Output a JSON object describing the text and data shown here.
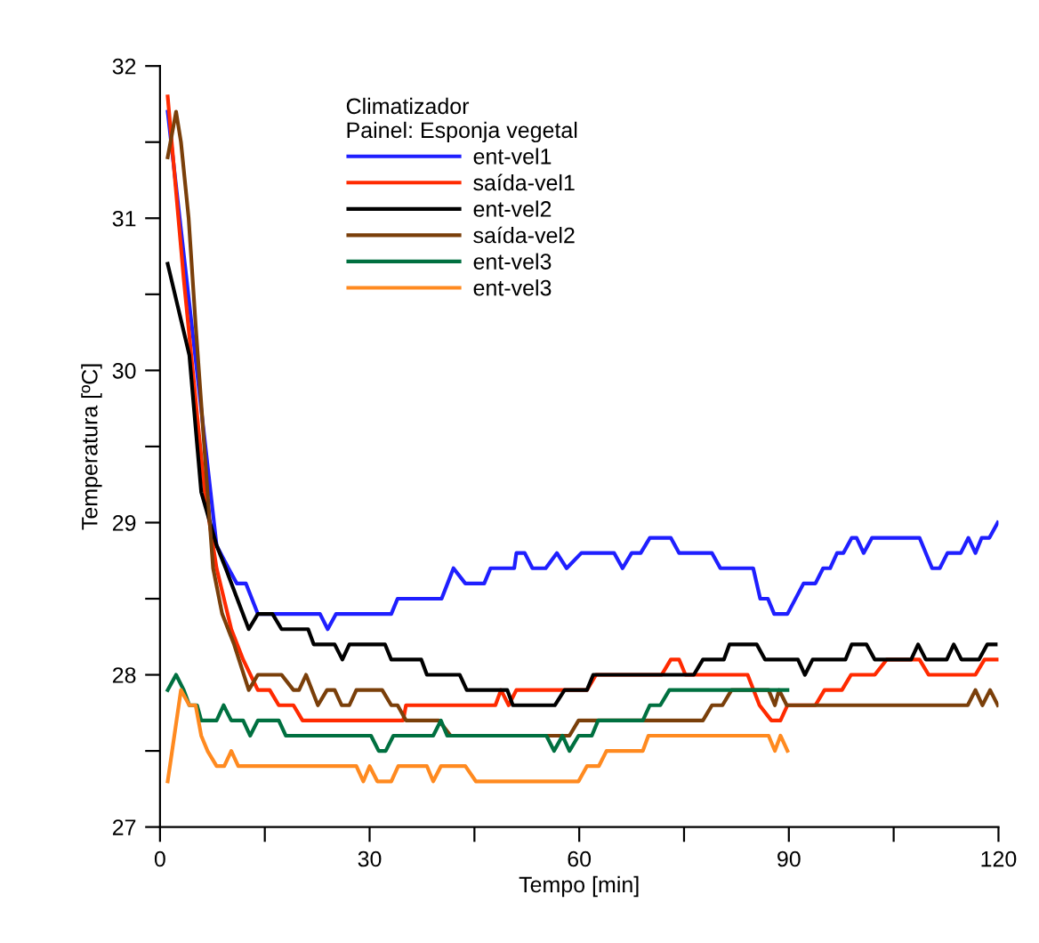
{
  "chart_data": {
    "type": "line",
    "xlabel": "Tempo [min]",
    "ylabel": "Temperatura [ºC]",
    "legend_title": "Climatizador\nPainel: Esponja vegetal",
    "legend": "top",
    "grid": false,
    "marker": "none",
    "line_style": "solid",
    "xlim": [
      0,
      120
    ],
    "ylim": [
      27,
      32
    ],
    "xticks": [
      0,
      {
        "value": 15,
        "label": null
      },
      30,
      {
        "value": 45,
        "label": null
      },
      60,
      {
        "value": 75,
        "label": null
      },
      90,
      {
        "value": 105,
        "label": null
      },
      120
    ],
    "yticks": [
      27,
      {
        "value": 27.5,
        "label": null
      },
      28,
      {
        "value": 28.5,
        "label": null
      },
      29,
      {
        "value": 29.5,
        "label": null
      },
      30,
      {
        "value": 30.5,
        "label": null
      },
      31,
      {
        "value": 31.5,
        "label": null
      },
      32
    ],
    "series": [
      {
        "name": "ent-vel1",
        "color": "#1f1fff",
        "x": [
          1.1,
          8.1,
          9.8,
          11,
          12.3,
          14,
          22.9,
          24,
          25.2,
          33.1,
          34,
          40.3,
          42,
          43.7,
          46.4,
          47.3,
          50.7,
          51,
          52.2,
          53.3,
          55.2,
          56.8,
          58.2,
          60.3,
          65,
          66.2,
          67.5,
          68.8,
          70.1,
          73.1,
          74.3,
          79,
          80.2,
          84.9,
          85.9,
          87,
          87.9,
          89.8,
          92.1,
          93.8,
          94.9,
          95.9,
          96.9,
          97.8,
          99,
          99.7,
          100.7,
          101.9,
          108.7,
          110.5,
          111.6,
          112.7,
          114.6,
          115.7,
          116.7,
          117.6,
          118.7,
          119.9
        ],
        "values": [
          31.7,
          28.85,
          28.7,
          28.6,
          28.6,
          28.4,
          28.4,
          28.3,
          28.4,
          28.4,
          28.5,
          28.5,
          28.7,
          28.6,
          28.6,
          28.7,
          28.7,
          28.8,
          28.8,
          28.7,
          28.7,
          28.8,
          28.7,
          28.8,
          28.8,
          28.7,
          28.8,
          28.8,
          28.9,
          28.9,
          28.8,
          28.8,
          28.7,
          28.7,
          28.5,
          28.5,
          28.4,
          28.4,
          28.6,
          28.6,
          28.7,
          28.7,
          28.8,
          28.8,
          28.9,
          28.9,
          28.8,
          28.9,
          28.9,
          28.7,
          28.7,
          28.8,
          28.8,
          28.9,
          28.8,
          28.9,
          28.9,
          29.0
        ]
      },
      {
        "name": "saída-vel1",
        "color": "#ff2a00",
        "x": [
          1.1,
          3.4,
          6.4,
          8.1,
          10.2,
          11.9,
          14,
          15.7,
          17,
          19.1,
          20.4,
          34.8,
          35.2,
          48,
          48.8,
          49.9,
          51,
          61.1,
          62.4,
          71.8,
          73.1,
          74.3,
          75.2,
          84.1,
          85.8,
          87.5,
          88.8,
          89.8,
          93.8,
          95.1,
          97.6,
          98.9,
          102.3,
          104,
          108.7,
          110,
          116.7,
          118,
          119.9
        ],
        "values": [
          31.8,
          30.6,
          29.2,
          28.7,
          28.3,
          28.1,
          27.9,
          27.9,
          27.8,
          27.8,
          27.7,
          27.7,
          27.8,
          27.8,
          27.9,
          27.8,
          27.9,
          27.9,
          28.0,
          28.0,
          28.1,
          28.1,
          28.0,
          28.0,
          27.8,
          27.7,
          27.7,
          27.8,
          27.8,
          27.9,
          27.9,
          28.0,
          28.0,
          28.1,
          28.1,
          28.0,
          28.0,
          28.1,
          28.1
        ]
      },
      {
        "name": "ent-vel2",
        "color": "#000000",
        "x": [
          1.1,
          4.2,
          5.9,
          8.1,
          9.4,
          12.7,
          14,
          16.1,
          17.4,
          21.2,
          22,
          25,
          26.1,
          27.1,
          32.2,
          33.1,
          37.4,
          38.2,
          42.9,
          43.9,
          49.7,
          50.5,
          56.5,
          57.9,
          61.1,
          62,
          76.4,
          77.7,
          80.7,
          81.5,
          85.4,
          86.6,
          91.3,
          92.3,
          93.4,
          98.1,
          99,
          101.1,
          102.3,
          107.5,
          108.5,
          109.6,
          112.6,
          113.6,
          114.7,
          117.2,
          118.4,
          119.6
        ],
        "values": [
          30.7,
          30.1,
          29.2,
          28.85,
          28.7,
          28.3,
          28.4,
          28.4,
          28.3,
          28.3,
          28.2,
          28.2,
          28.1,
          28.2,
          28.2,
          28.1,
          28.1,
          28.0,
          28.0,
          27.9,
          27.9,
          27.8,
          27.8,
          27.9,
          27.9,
          28.0,
          28.0,
          28.1,
          28.1,
          28.2,
          28.2,
          28.1,
          28.1,
          28.0,
          28.1,
          28.1,
          28.2,
          28.2,
          28.1,
          28.1,
          28.2,
          28.1,
          28.1,
          28.2,
          28.1,
          28.1,
          28.2,
          28.2
        ]
      },
      {
        "name": "saída-vel2",
        "color": "#7a3f0a",
        "x": [
          1.1,
          2.3,
          3,
          4.1,
          5.1,
          6.8,
          7.6,
          8.9,
          10.6,
          12.7,
          14,
          17.4,
          19.1,
          19.9,
          20.9,
          22.6,
          23.9,
          25,
          26,
          27.1,
          28.1,
          31.8,
          33.1,
          34,
          35.2,
          39.9,
          41.6,
          58.6,
          59.9,
          77.7,
          79,
          80.5,
          81.8,
          87.1,
          88,
          88.6,
          89.7,
          115.6,
          116.7,
          117.7,
          118.8,
          119.9
        ],
        "values": [
          31.4,
          31.7,
          31.5,
          31.0,
          30.3,
          29.2,
          28.7,
          28.4,
          28.2,
          27.9,
          28.0,
          28.0,
          27.9,
          27.9,
          28.0,
          27.8,
          27.9,
          27.9,
          27.8,
          27.8,
          27.9,
          27.9,
          27.8,
          27.8,
          27.7,
          27.7,
          27.6,
          27.6,
          27.7,
          27.7,
          27.8,
          27.8,
          27.9,
          27.9,
          27.8,
          27.9,
          27.8,
          27.8,
          27.9,
          27.8,
          27.9,
          27.8
        ]
      },
      {
        "name": "ent-vel3",
        "color": "#007040",
        "x": [
          1.1,
          2.3,
          3.4,
          4.2,
          5.3,
          5.9,
          8.1,
          9.1,
          10.2,
          11.9,
          12.9,
          14,
          17,
          18,
          30.2,
          31.3,
          32.3,
          33.4,
          39.1,
          40.2,
          41.1,
          55.3,
          56.4,
          57.6,
          58.6,
          59.9,
          61.8,
          62.7,
          69.1,
          70.1,
          71.6,
          72.9,
          89.8
        ],
        "values": [
          27.9,
          28.0,
          27.9,
          27.8,
          27.8,
          27.7,
          27.7,
          27.8,
          27.7,
          27.7,
          27.6,
          27.7,
          27.7,
          27.6,
          27.6,
          27.5,
          27.5,
          27.6,
          27.6,
          27.7,
          27.6,
          27.6,
          27.5,
          27.6,
          27.5,
          27.6,
          27.6,
          27.7,
          27.7,
          27.8,
          27.8,
          27.9,
          27.9
        ]
      },
      {
        "name": "ent-vel3",
        "color": "#ff8a20",
        "x": [
          1.1,
          3,
          4.2,
          5.1,
          5.9,
          6.8,
          8.1,
          9.2,
          10.2,
          11.2,
          28.1,
          29.1,
          30,
          31.1,
          33.1,
          34.1,
          38.2,
          39.1,
          40.2,
          43.7,
          45.2,
          59.9,
          61.1,
          62.8,
          63.9,
          69.1,
          69.9,
          87.1,
          88,
          88.8,
          89.8
        ],
        "values": [
          27.3,
          27.9,
          27.8,
          27.8,
          27.6,
          27.5,
          27.4,
          27.4,
          27.5,
          27.4,
          27.4,
          27.3,
          27.4,
          27.3,
          27.3,
          27.4,
          27.4,
          27.3,
          27.4,
          27.4,
          27.3,
          27.3,
          27.4,
          27.4,
          27.5,
          27.5,
          27.6,
          27.6,
          27.5,
          27.6,
          27.5
        ]
      }
    ]
  }
}
